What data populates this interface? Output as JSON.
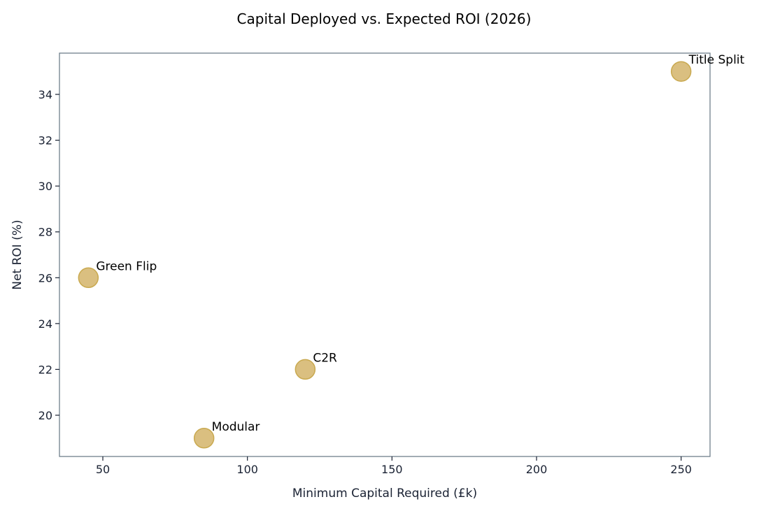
{
  "chart_data": {
    "type": "scatter",
    "title": "Capital Deployed vs. Expected ROI (2026)",
    "xlabel": "Minimum Capital Required (£k)",
    "ylabel": "Net ROI (%)",
    "xlim": [
      35,
      260
    ],
    "ylim": [
      18.2,
      35.8
    ],
    "xticks": [
      50,
      100,
      150,
      200,
      250
    ],
    "yticks": [
      20,
      22,
      24,
      26,
      28,
      30,
      32,
      34
    ],
    "grid": false,
    "legend": "none",
    "marker_color": "#d4b46a",
    "marker_edge_color": "#c9a94f",
    "frame_color": "#6f7f8c",
    "points": [
      {
        "label": "Green Flip",
        "x": 45,
        "y": 26
      },
      {
        "label": "Modular",
        "x": 85,
        "y": 19
      },
      {
        "label": "C2R",
        "x": 120,
        "y": 22
      },
      {
        "label": "Title Split",
        "x": 250,
        "y": 35
      }
    ]
  }
}
